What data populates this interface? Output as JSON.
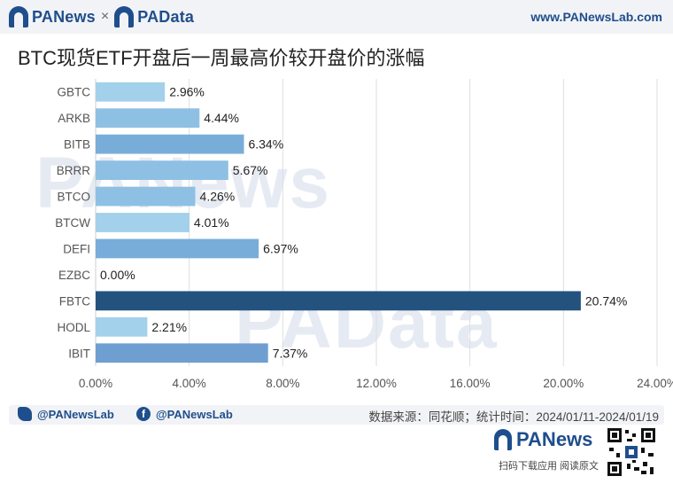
{
  "header": {
    "brand_left": "PANews",
    "brand_sep": "×",
    "brand_right": "PAData",
    "site": "www.PANewsLab.com"
  },
  "watermarks": {
    "top": "PANews",
    "bottom": "PAData"
  },
  "chart_data": {
    "type": "bar",
    "orientation": "horizontal",
    "title": "BTC现货ETF开盘后一周最高价较开盘价的涨幅",
    "categories": [
      "GBTC",
      "ARKB",
      "BITB",
      "BRRR",
      "BTCO",
      "BTCW",
      "DEFI",
      "EZBC",
      "FBTC",
      "HODL",
      "IBIT"
    ],
    "values": [
      2.96,
      4.44,
      6.34,
      5.67,
      4.26,
      4.01,
      6.97,
      0.0,
      20.74,
      2.21,
      7.37
    ],
    "value_labels": [
      "2.96%",
      "4.44%",
      "6.34%",
      "5.67%",
      "4.26%",
      "4.01%",
      "6.97%",
      "0.00%",
      "20.74%",
      "2.21%",
      "7.37%"
    ],
    "xlim": [
      0,
      24
    ],
    "xticks": [
      0,
      4,
      8,
      12,
      16,
      20,
      24
    ],
    "xtick_labels": [
      "0.00%",
      "4.00%",
      "8.00%",
      "12.00%",
      "16.00%",
      "20.00%",
      "24.00%"
    ],
    "grid": "vertical",
    "colors": [
      "#a3d0ea",
      "#8ec0e4",
      "#79add9",
      "#8ec0e4",
      "#8ec0e4",
      "#a3d0ea",
      "#79add9",
      "#a3d0ea",
      "#24527f",
      "#a3d0ea",
      "#6e9fd0"
    ]
  },
  "footer": {
    "twitter": "@PANewsLab",
    "facebook": "@PANewsLab",
    "source": "数据来源：同花顺；统计时间：2024/01/11-2024/01/19",
    "logo": "PANews",
    "links": "扫码下载应用  阅读原文"
  }
}
